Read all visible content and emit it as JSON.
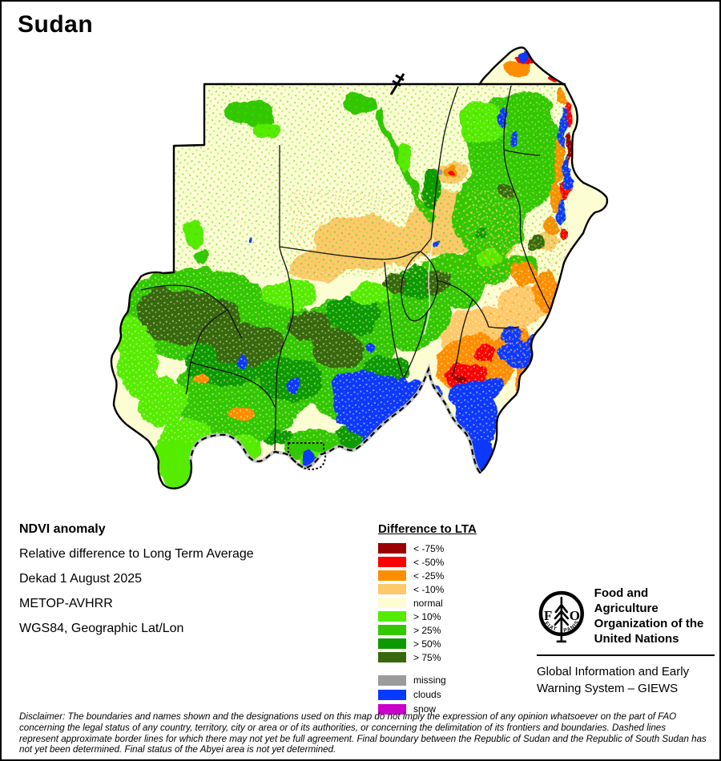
{
  "header": {
    "title": "Sudan"
  },
  "info": {
    "product": "NDVI anomaly",
    "subtitle": "Relative difference to Long Term Average",
    "dekad": "Dekad 1 August 2025",
    "sensor": "METOP-AVHRR",
    "projection": "WGS84, Geographic Lat/Lon"
  },
  "legend": {
    "title": "Difference to LTA",
    "entries": [
      {
        "label": "< -75%",
        "color": "#9A0000"
      },
      {
        "label": "< -50%",
        "color": "#FB0000"
      },
      {
        "label": "< -25%",
        "color": "#FF8D00"
      },
      {
        "label": "< -10%",
        "color": "#FDC96B"
      },
      {
        "label": "normal",
        "color": "#FDFDD3"
      },
      {
        "label": "> 10%",
        "color": "#55EC00"
      },
      {
        "label": "> 25%",
        "color": "#33C702"
      },
      {
        "label": "> 50%",
        "color": "#0D9A00"
      },
      {
        "label": "> 75%",
        "color": "#38680B"
      }
    ],
    "extras": [
      {
        "label": "missing",
        "color": "#9B9B9B"
      },
      {
        "label": "clouds",
        "color": "#0839FE"
      },
      {
        "label": "snow",
        "color": "#CB00CB"
      }
    ]
  },
  "fao": {
    "monogram_f": "F",
    "monogram_a": "A",
    "monogram_o": "O",
    "fiat": "FIAT",
    "panis": "PANIS",
    "org_name": "Food and Agriculture\nOrganization of the\nUnited Nations",
    "giews": "Global Information and Early\nWarning System – GIEWS"
  },
  "disclaimer": "Disclaimer: The boundaries and names shown and the designations used on this map do not imply the expression of any opinion whatsoever on the part of FAO concerning the legal status of any country, territory, city or area or of its authorities, or concerning the delimitation of its frontiers and boundaries. Dashed lines represent approximate border lines for which there may not yet be full agreement.  Final boundary between the Republic of Sudan and the Republic of South Sudan has not yet been determined. Final status of the Abyei area is not yet determined."
}
